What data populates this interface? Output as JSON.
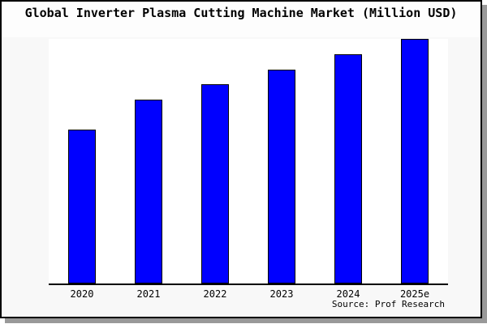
{
  "title": "Global Inverter Plasma Cutting Machine Market (Million USD)",
  "source": "Source: Prof Research",
  "colors": {
    "bar_fill": "#0000ff",
    "bar_border": "#000000",
    "axis": "#000000",
    "card_background": "#f8f8f8",
    "plot_background": "#ffffff",
    "card_border": "#000000",
    "shadow": "#999999"
  },
  "chart_data": {
    "type": "bar",
    "title": "Global Inverter Plasma Cutting Machine Market (Million USD)",
    "categories": [
      "2020",
      "2021",
      "2022",
      "2023",
      "2024",
      "2025e"
    ],
    "values": [
      190,
      227,
      246,
      264,
      283,
      302
    ],
    "value_scale": "relative-pixel-height (no y-axis labels shown)",
    "xlabel": "",
    "ylabel": "",
    "y_axis_visible": false,
    "grid": false,
    "legend": false,
    "source_note": "Source: Prof Research"
  }
}
